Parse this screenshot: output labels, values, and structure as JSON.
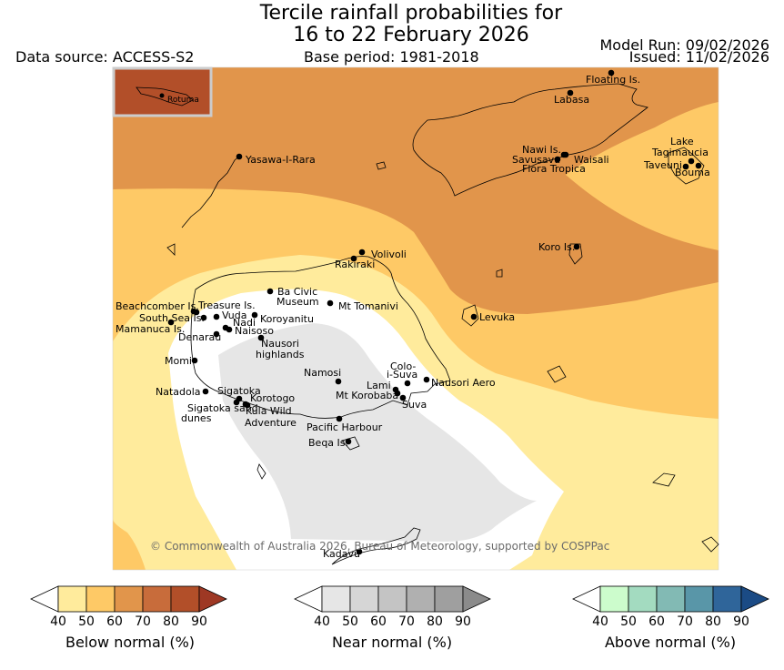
{
  "header": {
    "title_line1": "Tercile rainfall probabilities for",
    "title_line2": "16 to 22 February 2026",
    "data_source": "Data source: ACCESS-S2",
    "base_period": "Base period: 1981-2018",
    "model_run": "Model Run: 09/02/2026",
    "issued": "Issued: 11/02/2026"
  },
  "map": {
    "attribution": "© Commonwealth of Australia 2026, Bureau of Meteorology, supported by COSPPac",
    "inset_label": "Rotuma",
    "places": [
      {
        "id": "floating-is",
        "label": "Floating Is."
      },
      {
        "id": "labasa",
        "label": "Labasa"
      },
      {
        "id": "yasawa",
        "label": "Yasawa-I-Rara"
      },
      {
        "id": "nawi",
        "label": "Nawi Is."
      },
      {
        "id": "savusavu",
        "label": "Savusavu"
      },
      {
        "id": "waisali",
        "label": "Waisali"
      },
      {
        "id": "flora",
        "label": "Flora Tropica"
      },
      {
        "id": "lake-tagimaucia",
        "label": "Lake Tagimaucia"
      },
      {
        "id": "taveuni",
        "label": "Taveuni"
      },
      {
        "id": "bouma",
        "label": "Bouma"
      },
      {
        "id": "koro",
        "label": "Koro Is."
      },
      {
        "id": "volivoli",
        "label": "Volivoli"
      },
      {
        "id": "rakiraki",
        "label": "Rakiraki"
      },
      {
        "id": "ba-civic",
        "label": "Ba Civic Museum"
      },
      {
        "id": "tomanivi",
        "label": "Mt Tomanivi"
      },
      {
        "id": "levuka",
        "label": "Levuka"
      },
      {
        "id": "beachcomber",
        "label": "Beachcomber Is."
      },
      {
        "id": "treasure",
        "label": "Treasure Is."
      },
      {
        "id": "south-sea",
        "label": "South Sea Is."
      },
      {
        "id": "vuda",
        "label": "Vuda"
      },
      {
        "id": "koroyanitu",
        "label": "Koroyanitu"
      },
      {
        "id": "nadi",
        "label": "Nadi"
      },
      {
        "id": "mamanuca",
        "label": "Mamanuca Is."
      },
      {
        "id": "naisoso",
        "label": "Naisoso"
      },
      {
        "id": "denarau",
        "label": "Denarau"
      },
      {
        "id": "nausori-highlands",
        "label": "Nausori highlands"
      },
      {
        "id": "momi",
        "label": "Momi"
      },
      {
        "id": "namosi",
        "label": "Namosi"
      },
      {
        "id": "colo-i-suva",
        "label": "Colo-i-Suva"
      },
      {
        "id": "nausori-aero",
        "label": "Nausori Aero"
      },
      {
        "id": "natadola",
        "label": "Natadola"
      },
      {
        "id": "sigatoka",
        "label": "Sigatoka"
      },
      {
        "id": "lami",
        "label": "Lami"
      },
      {
        "id": "korotogo",
        "label": "Korotogo"
      },
      {
        "id": "mt-korobaba",
        "label": "Mt Korobaba"
      },
      {
        "id": "suva",
        "label": "Suva"
      },
      {
        "id": "sigatoka-dunes",
        "label": "Sigatoka sand dunes"
      },
      {
        "id": "kula",
        "label": "Kula Wild Adventure"
      },
      {
        "id": "pacific-harbour",
        "label": "Pacific Harbour"
      },
      {
        "id": "beqa",
        "label": "Beqa Is."
      },
      {
        "id": "kadavu",
        "label": "Kadavu"
      }
    ]
  },
  "colorbars": [
    {
      "id": "below",
      "label": "Below normal (%)",
      "ticks": [
        "40",
        "50",
        "60",
        "70",
        "80",
        "90"
      ],
      "colors": [
        "#ffffff",
        "#ffeb9c",
        "#fec966",
        "#e1954b",
        "#c86c3b",
        "#b24f29",
        "#9e3824"
      ]
    },
    {
      "id": "near",
      "label": "Near normal (%)",
      "ticks": [
        "40",
        "50",
        "60",
        "70",
        "80",
        "90"
      ],
      "colors": [
        "#ffffff",
        "#e6e6e6",
        "#d6d6d6",
        "#c4c4c4",
        "#b0b0b0",
        "#9f9f9f",
        "#8b8b8b"
      ]
    },
    {
      "id": "above",
      "label": "Above normal (%)",
      "ticks": [
        "40",
        "50",
        "60",
        "70",
        "80",
        "90"
      ],
      "colors": [
        "#ffffff",
        "#ccfccc",
        "#a3dbc0",
        "#82bab4",
        "#5996a8",
        "#2f659a",
        "#1b4b85"
      ]
    }
  ]
}
